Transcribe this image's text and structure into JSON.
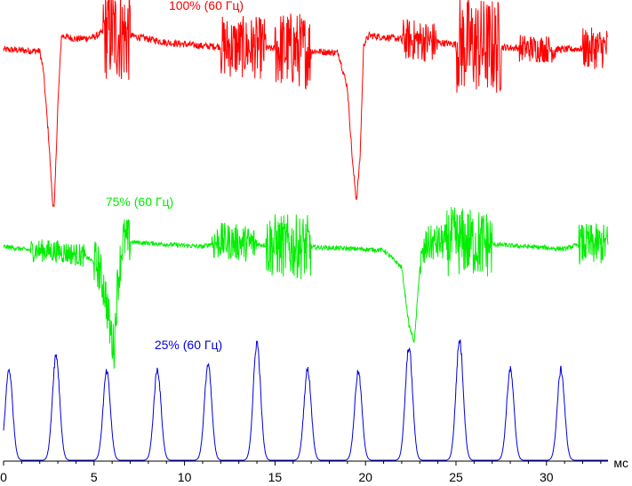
{
  "chart_data": {
    "type": "line",
    "title": "",
    "xlabel": "мс",
    "ylabel": "",
    "xlim": [
      0,
      33.4
    ],
    "x_ticks": [
      0,
      5,
      10,
      15,
      20,
      25,
      30
    ],
    "grid": false,
    "series": [
      {
        "name": "100% (60 Гц)",
        "color": "#ff0000",
        "points": [
          [
            0,
            0.92
          ],
          [
            2.0,
            0.91
          ],
          [
            2.2,
            0.8
          ],
          [
            2.5,
            0.4
          ],
          [
            2.7,
            0.05
          ],
          [
            2.8,
            0.0
          ],
          [
            3.0,
            0.6
          ],
          [
            3.2,
            1.0
          ],
          [
            4.0,
            0.98
          ],
          [
            5.0,
            0.99
          ],
          [
            5.5,
            1.02
          ],
          [
            7.0,
            1.0
          ],
          [
            9.0,
            0.96
          ],
          [
            11.0,
            0.94
          ],
          [
            14.0,
            0.93
          ],
          [
            16.0,
            0.92
          ],
          [
            18.5,
            0.9
          ],
          [
            19.0,
            0.7
          ],
          [
            19.3,
            0.25
          ],
          [
            19.5,
            0.05
          ],
          [
            19.7,
            0.3
          ],
          [
            19.9,
            0.95
          ],
          [
            20.2,
            1.0
          ],
          [
            22.0,
            0.98
          ],
          [
            25.0,
            0.95
          ],
          [
            28.0,
            0.93
          ],
          [
            31.0,
            0.92
          ],
          [
            33.4,
            0.93
          ]
        ],
        "noise": [
          [
            5.5,
            7.0,
            0.28
          ],
          [
            12.0,
            14.5,
            0.18
          ],
          [
            15.0,
            17.0,
            0.22
          ],
          [
            22.0,
            24.0,
            0.12
          ],
          [
            25.0,
            27.5,
            0.28
          ],
          [
            28.5,
            30.5,
            0.08
          ],
          [
            32.0,
            33.4,
            0.12
          ]
        ]
      },
      {
        "name": "75% (60 Гц)",
        "color": "#00ee00",
        "points": [
          [
            0,
            0.88
          ],
          [
            1.5,
            0.85
          ],
          [
            3.0,
            0.84
          ],
          [
            4.5,
            0.8
          ],
          [
            5.2,
            0.72
          ],
          [
            5.6,
            0.5
          ],
          [
            5.9,
            0.15
          ],
          [
            6.1,
            0.0
          ],
          [
            6.3,
            0.55
          ],
          [
            6.6,
            0.95
          ],
          [
            7.0,
            0.92
          ],
          [
            9.0,
            0.9
          ],
          [
            11.0,
            0.88
          ],
          [
            12.0,
            0.93
          ],
          [
            14.0,
            0.9
          ],
          [
            16.0,
            0.88
          ],
          [
            18.0,
            0.87
          ],
          [
            21.0,
            0.85
          ],
          [
            22.0,
            0.7
          ],
          [
            22.4,
            0.2
          ],
          [
            22.7,
            0.05
          ],
          [
            23.0,
            0.7
          ],
          [
            23.4,
            0.9
          ],
          [
            25.0,
            0.93
          ],
          [
            27.0,
            0.9
          ],
          [
            29.0,
            0.88
          ],
          [
            31.0,
            0.86
          ],
          [
            31.8,
            0.9
          ],
          [
            33.4,
            0.9
          ]
        ],
        "noise": [
          [
            1.5,
            4.5,
            0.1
          ],
          [
            5.0,
            7.0,
            0.2
          ],
          [
            11.5,
            14.0,
            0.16
          ],
          [
            14.5,
            17.0,
            0.28
          ],
          [
            23.0,
            24.5,
            0.16
          ],
          [
            24.5,
            27.0,
            0.3
          ],
          [
            31.8,
            33.4,
            0.18
          ]
        ]
      },
      {
        "name": "25% (60 Гц)",
        "color": "#0000dd",
        "baseline": 0.0,
        "pulses": [
          [
            0.3,
            0.74
          ],
          [
            2.9,
            0.86
          ],
          [
            5.7,
            0.72
          ],
          [
            8.5,
            0.74
          ],
          [
            11.3,
            0.78
          ],
          [
            14.0,
            0.96
          ],
          [
            16.8,
            0.74
          ],
          [
            19.6,
            0.72
          ],
          [
            22.4,
            0.92
          ],
          [
            25.2,
            0.98
          ],
          [
            28.0,
            0.74
          ],
          [
            30.8,
            0.74
          ]
        ]
      }
    ]
  }
}
